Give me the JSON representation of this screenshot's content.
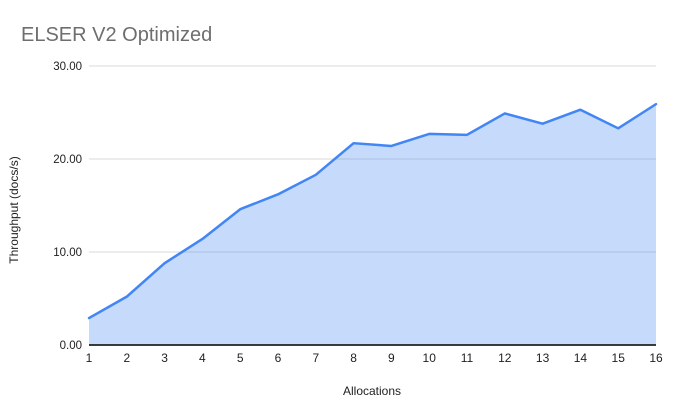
{
  "page": {
    "background": "#ffffff"
  },
  "colors": {
    "series_line": "#4285f4",
    "series_fill": "#4285f4",
    "series_fill_opacity": 0.3,
    "gridline": "#dadada",
    "axis_line": "#212121",
    "tick_text": "#1f1f1f",
    "title_text": "#6e6e6e"
  },
  "chart_data": {
    "type": "area",
    "title": "ELSER V2 Optimized",
    "xlabel": "Allocations",
    "ylabel": "Throughput (docs/s)",
    "categories": [
      "1",
      "2",
      "3",
      "4",
      "5",
      "6",
      "7",
      "8",
      "9",
      "10",
      "11",
      "12",
      "13",
      "14",
      "15",
      "16"
    ],
    "values": [
      2.9,
      5.2,
      8.8,
      11.4,
      14.6,
      16.2,
      18.3,
      21.7,
      21.4,
      22.7,
      22.6,
      24.9,
      23.8,
      25.3,
      23.3,
      25.9
    ],
    "series_name": "Throughput (docs/s)",
    "ylim": [
      0,
      30
    ],
    "y_ticks": [
      {
        "value": 0,
        "label": "0.00"
      },
      {
        "value": 10,
        "label": "10.00"
      },
      {
        "value": 20,
        "label": "20.00"
      },
      {
        "value": 30,
        "label": "30.00"
      }
    ],
    "grid": true,
    "legend": "none"
  }
}
